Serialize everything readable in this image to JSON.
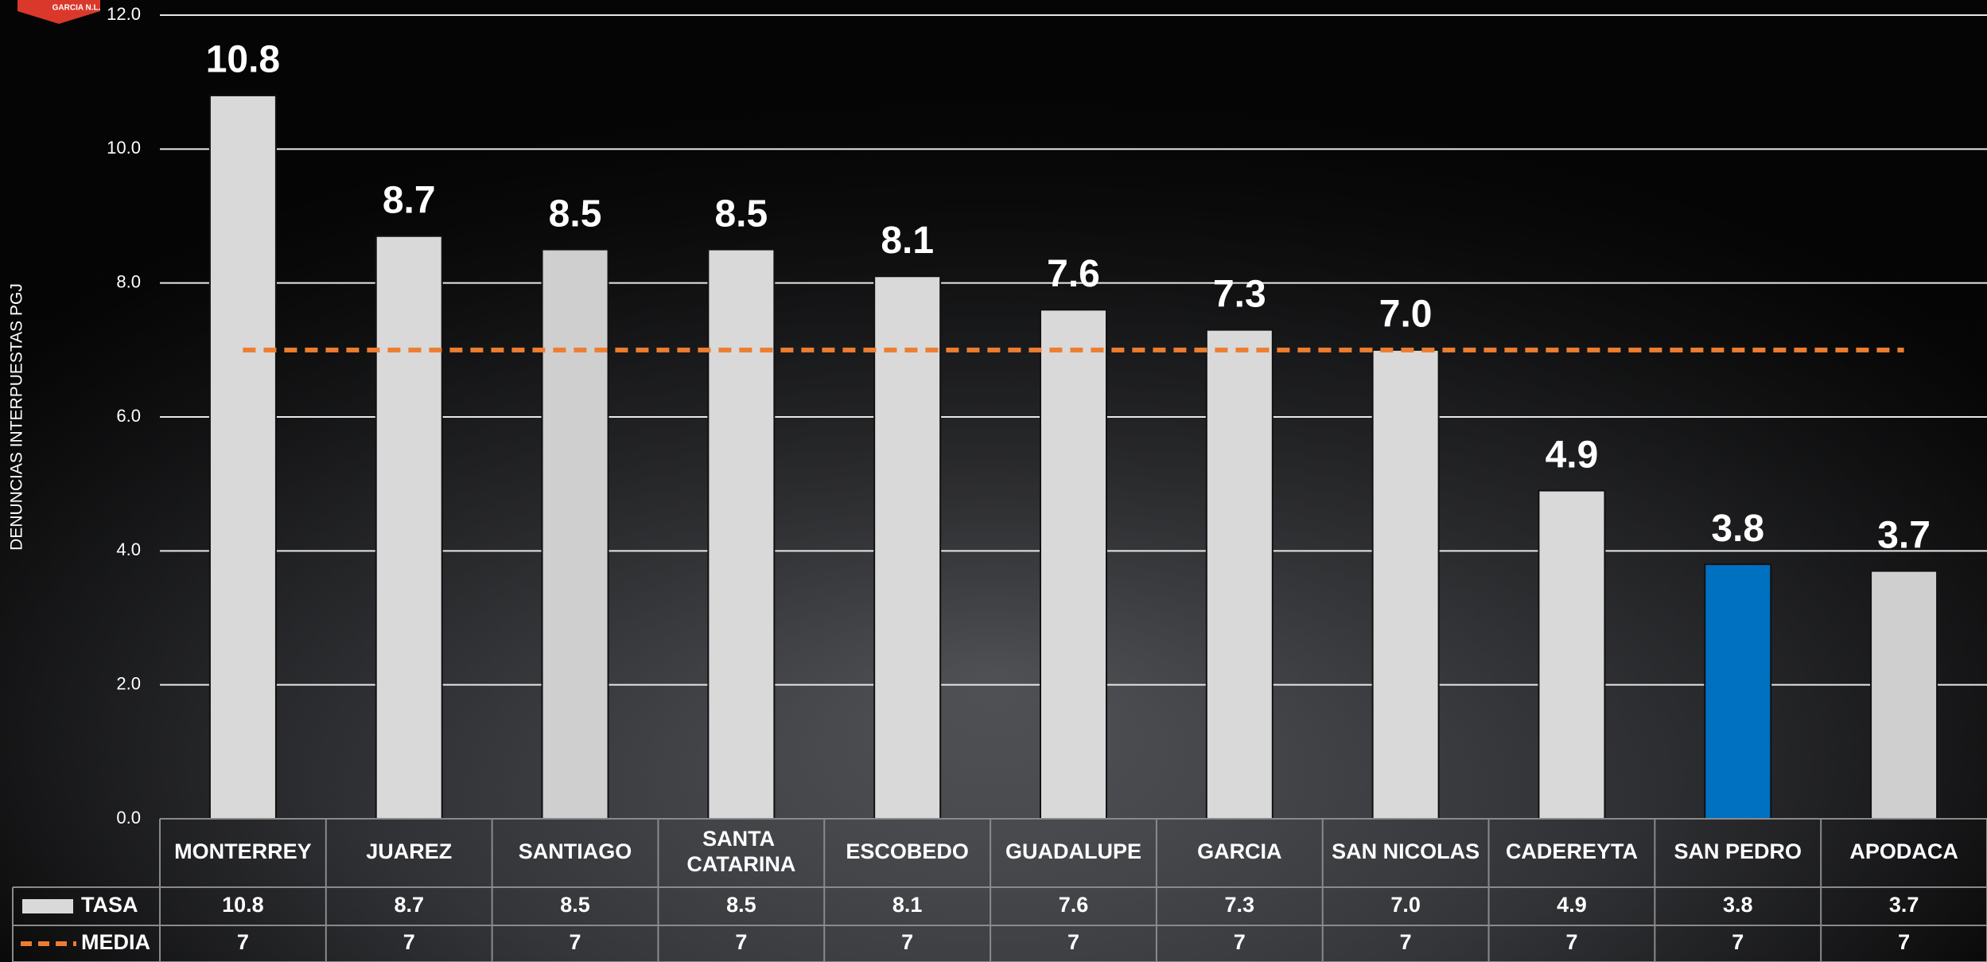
{
  "logo": "GARCIA N.L.",
  "chart_data": {
    "type": "bar",
    "y_label": "DENUNCIAS INTERPUESTAS PGJ",
    "categories": [
      "MONTERREY",
      "JUAREZ",
      "SANTIAGO",
      "SANTA CATARINA",
      "ESCOBEDO",
      "GUADALUPE",
      "GARCIA",
      "SAN NICOLAS",
      "CADEREYTA",
      "SAN PEDRO",
      "APODACA"
    ],
    "series": [
      {
        "name": "TASA",
        "type": "bar",
        "color": "#d9d9d9",
        "colors": [
          "#d9d9d9",
          "#d9d9d9",
          "#d0cfcf",
          "#d9d9d9",
          "#d9d9d9",
          "#d9d9d9",
          "#d9d9d9",
          "#d9d9d9",
          "#d9d9d9",
          "#0070c0",
          "#d0cfcf"
        ],
        "values": [
          10.8,
          8.7,
          8.5,
          8.5,
          8.1,
          7.6,
          7.3,
          7.0,
          4.9,
          3.8,
          3.7
        ],
        "value_labels": [
          "10.8",
          "8.7",
          "8.5",
          "8.5",
          "8.1",
          "7.6",
          "7.3",
          "7.0",
          "4.9",
          "3.8",
          "3.7"
        ]
      },
      {
        "name": "MEDIA",
        "type": "line",
        "color": "#ed7d31",
        "dashed": true,
        "values": [
          7,
          7,
          7,
          7,
          7,
          7,
          7,
          7,
          7,
          7,
          7
        ]
      }
    ],
    "ylim": [
      0,
      12
    ],
    "yticks": [
      {
        "value": 0,
        "label": "0.0"
      },
      {
        "value": 2,
        "label": "2.0"
      },
      {
        "value": 4,
        "label": "4.0"
      },
      {
        "value": 6,
        "label": "6.0"
      },
      {
        "value": 8,
        "label": "8.0"
      },
      {
        "value": 10,
        "label": "10.0"
      },
      {
        "value": 12,
        "label": "12.0"
      }
    ],
    "grid": true,
    "data_table": true
  }
}
